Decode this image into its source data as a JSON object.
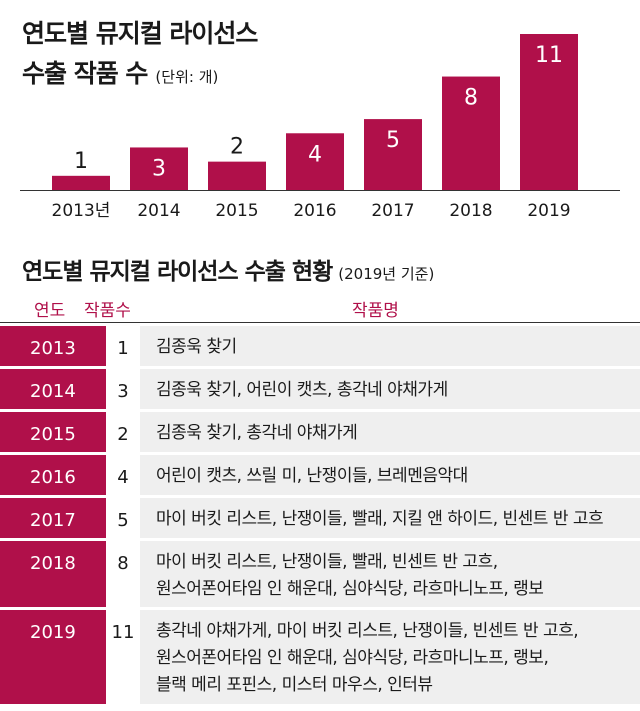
{
  "title_line1": "연도별 뮤지컬 라이선스",
  "title_line2": "수출 작품 수",
  "unit": "(단위: 개)",
  "chart_data": {
    "type": "bar",
    "categories": [
      "2013년",
      "2014",
      "2015",
      "2016",
      "2017",
      "2018",
      "2019"
    ],
    "values": [
      1,
      3,
      2,
      4,
      5,
      8,
      11
    ],
    "ylim": [
      0,
      11
    ],
    "bar_color": "#b0104a"
  },
  "table": {
    "title": "연도별 뮤지컬 라이선스 수출 현황",
    "note": "(2019년 기준)",
    "headers": {
      "year": "연도",
      "count": "작품수",
      "works": "작품명"
    },
    "rows": [
      {
        "year": "2013",
        "count": "1",
        "works": [
          "김종욱 찾기"
        ]
      },
      {
        "year": "2014",
        "count": "3",
        "works": [
          "김종욱 찾기, 어린이 캣츠, 총각네 야채가게"
        ]
      },
      {
        "year": "2015",
        "count": "2",
        "works": [
          "김종욱 찾기, 총각네 야채가게"
        ]
      },
      {
        "year": "2016",
        "count": "4",
        "works": [
          "어린이 캣츠, 쓰릴 미, 난쟁이들, 브레멘음악대"
        ]
      },
      {
        "year": "2017",
        "count": "5",
        "works": [
          "마이 버킷 리스트, 난쟁이들, 빨래, 지킬 앤 하이드, 빈센트 반 고흐"
        ]
      },
      {
        "year": "2018",
        "count": "8",
        "works": [
          "마이 버킷 리스트, 난쟁이들, 빨래, 빈센트 반 고흐,",
          "원스어폰어타임 인 해운대, 심야식당, 라흐마니노프, 랭보"
        ]
      },
      {
        "year": "2019",
        "count": "11",
        "works": [
          "총각네 야채가게, 마이 버킷 리스트, 난쟁이들, 빈센트 반 고흐,",
          "원스어폰어타임 인 해운대, 심야식당, 라흐마니노프, 랭보,",
          "블랙 메리 포핀스, 미스터 마우스, 인터뷰"
        ]
      }
    ],
    "accent_color": "#b0104a",
    "row_bg": "#efefef"
  }
}
